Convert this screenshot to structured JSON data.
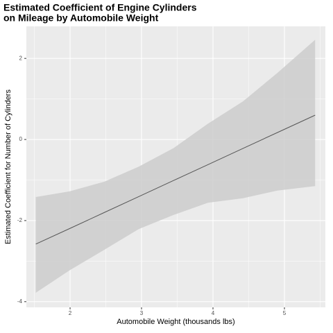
{
  "chart_data": {
    "type": "line",
    "title": [
      "Estimated Coefficient of Engine Cylinders",
      "on Mileage by Automobile Weight"
    ],
    "x_label": "Automobile Weight (thousands lbs)",
    "y_label": "Estimated Coefficient for Number of Cylinders",
    "x": [
      1.52,
      1.99,
      2.48,
      2.96,
      3.45,
      3.93,
      4.42,
      4.9,
      5.43
    ],
    "values": [
      -2.58,
      -2.2,
      -1.8,
      -1.41,
      -1.01,
      -0.62,
      -0.22,
      0.17,
      0.6
    ],
    "lower": [
      -3.78,
      -3.23,
      -2.72,
      -2.21,
      -1.86,
      -1.56,
      -1.45,
      -1.26,
      -1.15
    ],
    "upper": [
      -1.42,
      -1.28,
      -1.04,
      -0.67,
      -0.21,
      0.39,
      0.94,
      1.64,
      2.46
    ],
    "color": "#555555",
    "band_color": "#cccccc",
    "xlim": [
      1.388,
      5.573
    ],
    "ylim": [
      -4.14,
      2.79
    ],
    "xticks": [
      2,
      3,
      4,
      5
    ],
    "yticks": [
      -4,
      -2,
      0,
      2
    ],
    "minor_xticks": [
      1.5,
      2.5,
      3.5,
      4.5,
      5.5
    ],
    "minor_yticks": [
      -3,
      -1,
      1
    ],
    "grid": true
  }
}
